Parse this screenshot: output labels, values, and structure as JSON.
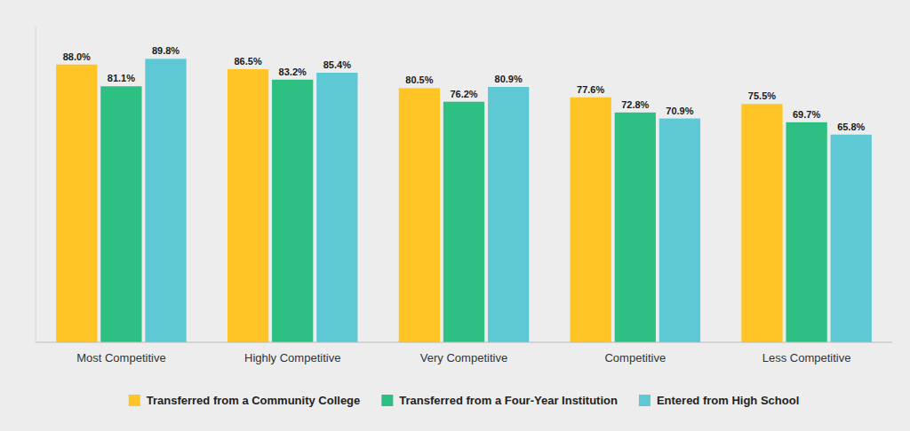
{
  "chart_data": {
    "type": "bar",
    "categories": [
      "Most Competitive",
      "Highly Competitive",
      "Very Competitive",
      "Competitive",
      "Less Competitive"
    ],
    "series": [
      {
        "name": "Transferred from a Community College",
        "color": "#FFC425",
        "values": [
          88.0,
          86.5,
          80.5,
          77.6,
          75.5
        ],
        "value_labels": [
          "88.0%",
          "86.5%",
          "80.5%",
          "77.6%",
          "75.5%"
        ]
      },
      {
        "name": "Transferred from a Four-Year Institution",
        "color": "#2EBF82",
        "values": [
          81.1,
          83.2,
          76.2,
          72.8,
          69.7
        ],
        "value_labels": [
          "81.1%",
          "83.2%",
          "76.2%",
          "72.8%",
          "69.7%"
        ]
      },
      {
        "name": "Entered from High School",
        "color": "#5EC8D4",
        "values": [
          89.8,
          85.4,
          80.9,
          70.9,
          65.8
        ],
        "value_labels": [
          "89.8%",
          "85.4%",
          "80.9%",
          "70.9%",
          "65.8%"
        ]
      }
    ],
    "ylim": [
      0,
      100
    ],
    "data_labels": true,
    "tick_labels": "x",
    "grid": false,
    "legend": "bottom"
  }
}
